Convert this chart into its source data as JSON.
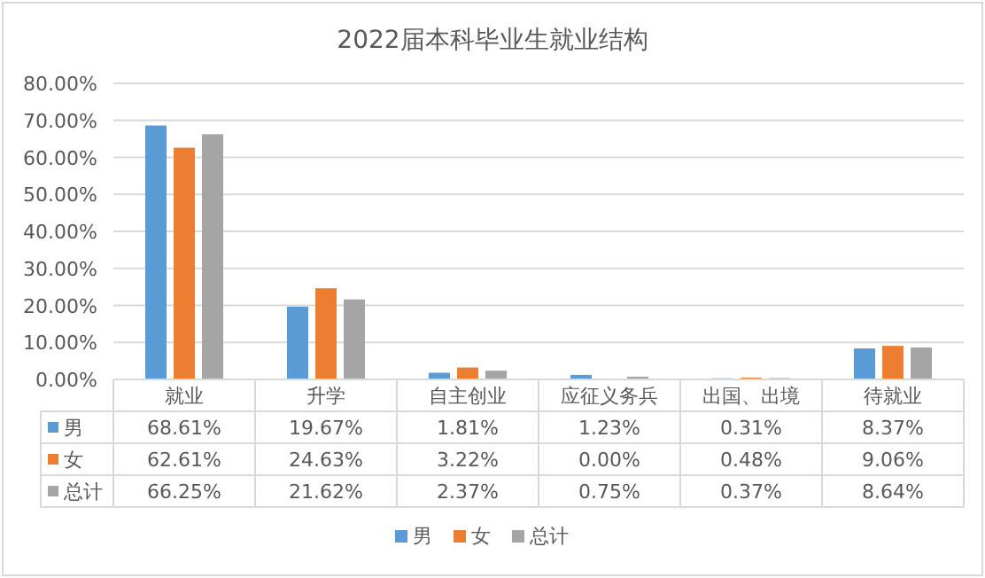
{
  "chart_data": {
    "type": "bar",
    "title": "2022届本科毕业生就业结构",
    "categories": [
      "就业",
      "升学",
      "自主创业",
      "应征义务兵",
      "出国、出境",
      "待就业"
    ],
    "series": [
      {
        "name": "男",
        "color": "#5b9bd5",
        "values": [
          68.61,
          19.67,
          1.81,
          1.23,
          0.31,
          8.37
        ],
        "value_labels": [
          "68.61%",
          "19.67%",
          "1.81%",
          "1.23%",
          "0.31%",
          "8.37%"
        ]
      },
      {
        "name": "女",
        "color": "#ed7d31",
        "values": [
          62.61,
          24.63,
          3.22,
          0.0,
          0.48,
          9.06
        ],
        "value_labels": [
          "62.61%",
          "24.63%",
          "3.22%",
          "0.00%",
          "0.48%",
          "9.06%"
        ]
      },
      {
        "name": "总计",
        "color": "#a5a5a5",
        "values": [
          66.25,
          21.62,
          2.37,
          0.75,
          0.37,
          8.64
        ],
        "value_labels": [
          "66.25%",
          "21.62%",
          "2.37%",
          "0.75%",
          "0.37%",
          "8.64%"
        ]
      }
    ],
    "ylim": [
      0,
      80
    ],
    "yticks": [
      {
        "value": 0,
        "label": "0.00%"
      },
      {
        "value": 10,
        "label": "10.00%"
      },
      {
        "value": 20,
        "label": "20.00%"
      },
      {
        "value": 30,
        "label": "30.00%"
      },
      {
        "value": 40,
        "label": "40.00%"
      },
      {
        "value": 50,
        "label": "50.00%"
      },
      {
        "value": 60,
        "label": "60.00%"
      },
      {
        "value": 70,
        "label": "70.00%"
      },
      {
        "value": 80,
        "label": "80.00%"
      }
    ],
    "grid": "y",
    "legend": "bottom"
  }
}
